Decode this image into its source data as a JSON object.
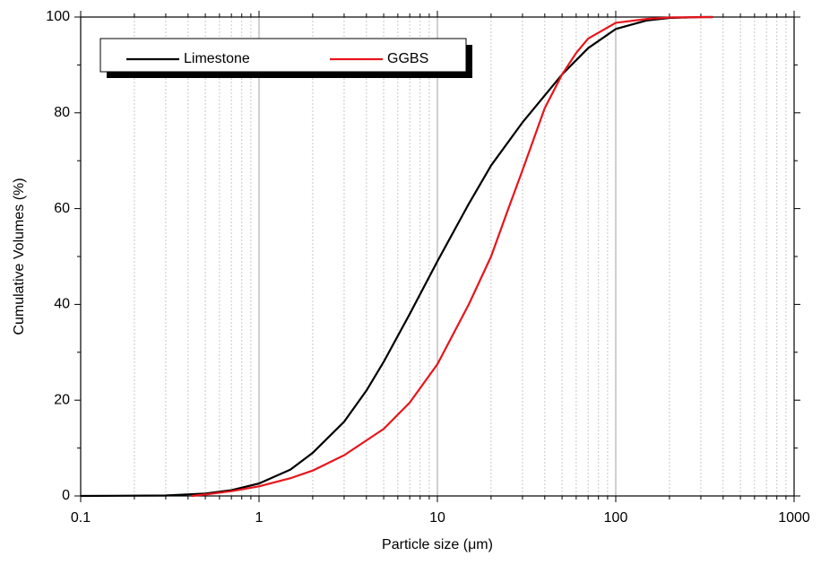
{
  "chart_data": {
    "type": "line",
    "xlabel": "Particle size (μm)",
    "ylabel": "Cumulative Volumes (%)",
    "xscale": "log",
    "xlim": [
      0.1,
      1000
    ],
    "ylim": [
      0,
      100
    ],
    "xticks": [
      0.1,
      1,
      10,
      100,
      1000
    ],
    "yticks": [
      0,
      20,
      40,
      60,
      80,
      100
    ],
    "xminorticks": [
      0.2,
      0.3,
      0.4,
      0.5,
      0.6,
      0.7,
      0.8,
      0.9,
      2,
      3,
      4,
      5,
      6,
      7,
      8,
      9,
      20,
      30,
      40,
      50,
      60,
      70,
      80,
      90,
      200,
      300,
      400,
      500,
      600,
      700,
      800,
      900
    ],
    "yminorticks": [
      10,
      30,
      50,
      70,
      90
    ],
    "grid": true,
    "legend": "top-left",
    "series": [
      {
        "name": "Limestone",
        "color": "#000000",
        "x": [
          0.1,
          0.3,
          0.5,
          0.7,
          1,
          1.5,
          2,
          3,
          4,
          5,
          7,
          10,
          15,
          20,
          30,
          50,
          70,
          100,
          150,
          200,
          300,
          350
        ],
        "values": [
          0,
          0.1,
          0.5,
          1.2,
          2.6,
          5.5,
          9,
          15.5,
          22,
          28,
          38,
          49,
          61,
          69,
          78,
          88,
          93.5,
          97.5,
          99.3,
          99.8,
          100,
          100
        ]
      },
      {
        "name": "GGBS",
        "color": "#e8141b",
        "x": [
          0.42,
          0.5,
          0.7,
          1,
          1.5,
          2,
          3,
          5,
          7,
          10,
          15,
          20,
          25,
          30,
          40,
          50,
          60,
          70,
          100,
          150,
          200,
          350
        ],
        "values": [
          0,
          0.3,
          1,
          2,
          3.7,
          5.3,
          8.5,
          14,
          19.5,
          27.5,
          40,
          50,
          60,
          68,
          81,
          88,
          92.5,
          95.5,
          98.8,
          99.6,
          99.9,
          100
        ]
      }
    ]
  }
}
